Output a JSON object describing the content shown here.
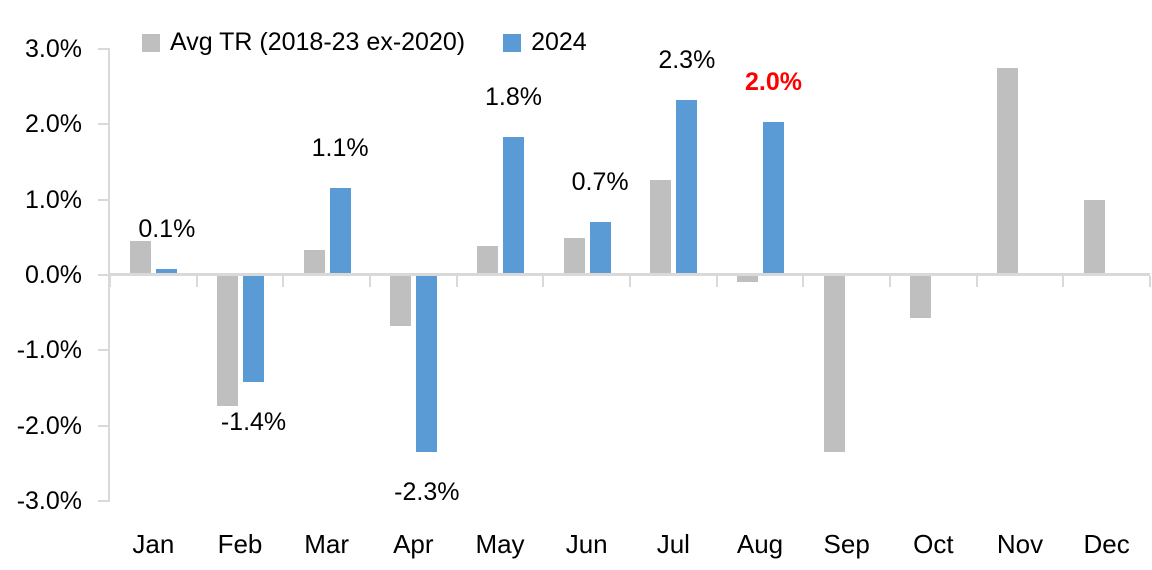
{
  "chart_data": {
    "type": "bar",
    "title": "",
    "xlabel": "",
    "ylabel": "",
    "categories": [
      "Jan",
      "Feb",
      "Mar",
      "Apr",
      "May",
      "Jun",
      "Jul",
      "Aug",
      "Sep",
      "Oct",
      "Nov",
      "Dec"
    ],
    "series": [
      {
        "name": "Avg TR (2018-23 ex-2020)",
        "color": "#BFBFBF",
        "values": [
          0.43,
          -1.72,
          0.31,
          -0.66,
          0.36,
          0.46,
          1.23,
          -0.08,
          -2.33,
          -0.56,
          2.72,
          0.97
        ]
      },
      {
        "name": "2024",
        "color": "#5B9BD5",
        "values": [
          0.05,
          -1.41,
          1.13,
          -2.33,
          1.8,
          0.68,
          2.3,
          2.0,
          null,
          null,
          null,
          null
        ]
      }
    ],
    "data_labels": [
      {
        "text": "0.1%",
        "color": "#000000",
        "bold": false
      },
      {
        "text": "-1.4%",
        "color": "#000000",
        "bold": false
      },
      {
        "text": "1.1%",
        "color": "#000000",
        "bold": false
      },
      {
        "text": "-2.3%",
        "color": "#000000",
        "bold": false
      },
      {
        "text": "1.8%",
        "color": "#000000",
        "bold": false
      },
      {
        "text": "0.7%",
        "color": "#000000",
        "bold": false
      },
      {
        "text": "2.3%",
        "color": "#000000",
        "bold": false
      },
      {
        "text": "2.0%",
        "color": "#FF0000",
        "bold": true
      },
      null,
      null,
      null,
      null
    ],
    "yticks": [
      "3.0%",
      "2.0%",
      "1.0%",
      "0.0%",
      "-1.0%",
      "-2.0%",
      "-3.0%"
    ],
    "ylim": [
      -3,
      3
    ],
    "grid": false,
    "legend_position": "top-left",
    "axis_color": "#D9D9D9"
  }
}
